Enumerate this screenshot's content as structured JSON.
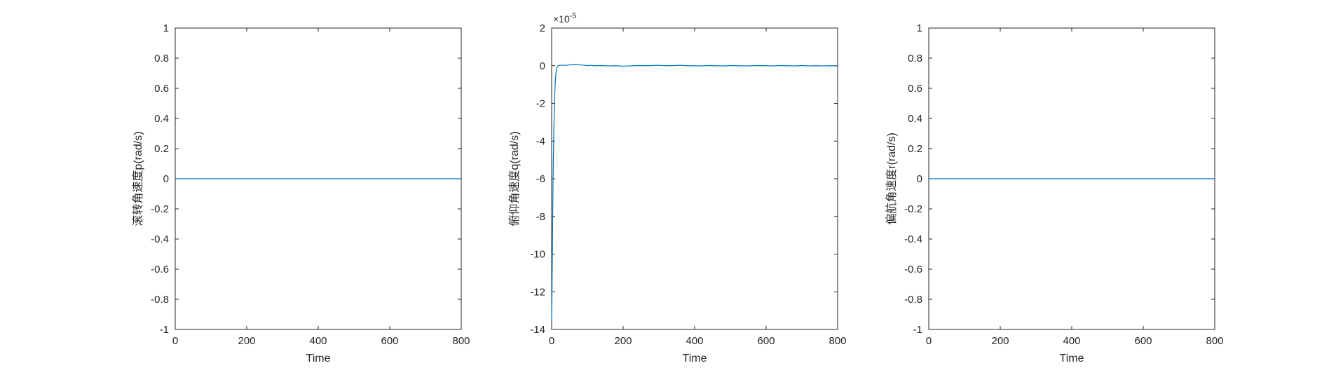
{
  "chart_data": [
    {
      "type": "line",
      "xlabel": "Time",
      "ylabel": "滚转角速度p(rad/s)",
      "xlim": [
        0,
        800
      ],
      "ylim": [
        -1,
        1
      ],
      "xticks": [
        "0",
        "200",
        "400",
        "600",
        "800"
      ],
      "yticks": [
        "-1",
        "-0.8",
        "-0.6",
        "-0.4",
        "-0.2",
        "0",
        "0.2",
        "0.4",
        "0.6",
        "0.8",
        "1"
      ],
      "exponent": "",
      "series": [
        {
          "color": "#0072BD",
          "x": [
            0,
            800
          ],
          "y": [
            0,
            0
          ]
        }
      ]
    },
    {
      "type": "line",
      "xlabel": "Time",
      "ylabel": "俯仰角速度q(rad/s)",
      "xlim": [
        0,
        800
      ],
      "ylim": [
        -0.00014,
        2e-05
      ],
      "xticks": [
        "0",
        "200",
        "400",
        "600",
        "800"
      ],
      "yticks": [
        "-14",
        "-12",
        "-10",
        "-8",
        "-6",
        "-4",
        "-2",
        "0",
        "2"
      ],
      "exponent": "-5",
      "series": [
        {
          "color": "#0072BD",
          "x": [
            0,
            1,
            2,
            3,
            4,
            6,
            8,
            10,
            12,
            15,
            18,
            22,
            26,
            30,
            40,
            50,
            60,
            70,
            80,
            90,
            100,
            110,
            120,
            140,
            160,
            180,
            200,
            220,
            240,
            260,
            280,
            300,
            320,
            340,
            360,
            380,
            400,
            420,
            440,
            460,
            480,
            500,
            520,
            540,
            560,
            580,
            600,
            620,
            640,
            660,
            680,
            700,
            720,
            740,
            760,
            780,
            800
          ],
          "y": [
            -0.000135,
            -0.00012,
            -0.0001,
            -8e-05,
            -6e-05,
            -3.5e-05,
            -2e-05,
            -9e-06,
            -4e-06,
            -1e-06,
            0,
            2e-07,
            3e-07,
            2e-07,
            2e-07,
            4e-07,
            6e-07,
            5e-07,
            4e-07,
            3e-07,
            1e-07,
            2e-07,
            0,
            1e-07,
            -1e-07,
            0,
            -2e-07,
            -1e-07,
            1e-07,
            0,
            1e-07,
            2e-07,
            0,
            1e-07,
            2e-07,
            0,
            0,
            -1e-07,
            1e-07,
            0,
            -1e-07,
            1e-07,
            0,
            -1e-07,
            0,
            1e-07,
            0,
            -1e-07,
            1e-07,
            0,
            -1e-07,
            1e-07,
            -1e-07,
            0,
            -1e-07,
            0,
            -1e-07
          ]
        }
      ]
    },
    {
      "type": "line",
      "xlabel": "Time",
      "ylabel": "偏航角速度r(rad/s)",
      "xlim": [
        0,
        800
      ],
      "ylim": [
        -1,
        1
      ],
      "xticks": [
        "0",
        "200",
        "400",
        "600",
        "800"
      ],
      "yticks": [
        "-1",
        "-0.8",
        "-0.6",
        "-0.4",
        "-0.2",
        "0",
        "0.2",
        "0.4",
        "0.6",
        "0.8",
        "1"
      ],
      "exponent": "",
      "series": [
        {
          "color": "#0072BD",
          "x": [
            0,
            800
          ],
          "y": [
            0,
            0
          ]
        }
      ]
    }
  ]
}
